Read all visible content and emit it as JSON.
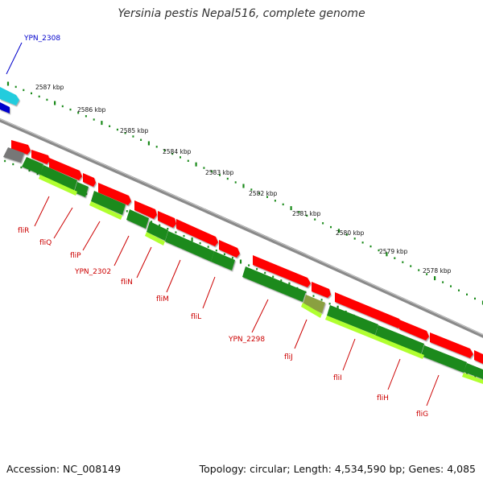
{
  "map": {
    "title": "Yersinia pestis Nepal516, complete genome",
    "accession_label": "Accession: NC_008149",
    "summary_label": "Topology: circular; Length: 4,534,590 bp; Genes: 4,085",
    "colors": {
      "forward_cds": "#ff0000",
      "reverse_cds": "#1e8a1e",
      "rna_gene": "#b0ff30",
      "backbone": "#8a8a8a",
      "tick": "#1a8a1a",
      "forward_label": "#cc0000",
      "reverse_label": "#0000cc",
      "other_feature": "#777777",
      "cyan_feature": "#22ccdd",
      "blue_feature": "#0000cc"
    },
    "tick_labels": [
      "2587 kbp",
      "2586 kbp",
      "2585 kbp",
      "2584 kbp",
      "2583 kbp",
      "2582 kbp",
      "2581 kbp",
      "2580 kbp",
      "2579 kbp",
      "2578 kbp"
    ],
    "gene_labels": [
      {
        "name": "YPN_2308",
        "strand": "forward"
      },
      {
        "name": "fliR",
        "strand": "reverse"
      },
      {
        "name": "fliQ",
        "strand": "reverse"
      },
      {
        "name": "fliP",
        "strand": "reverse"
      },
      {
        "name": "YPN_2302",
        "strand": "reverse"
      },
      {
        "name": "fliN",
        "strand": "reverse"
      },
      {
        "name": "fliM",
        "strand": "reverse"
      },
      {
        "name": "fliL",
        "strand": "reverse"
      },
      {
        "name": "YPN_2298",
        "strand": "reverse"
      },
      {
        "name": "fliJ",
        "strand": "reverse"
      },
      {
        "name": "fliI",
        "strand": "reverse"
      },
      {
        "name": "fliH",
        "strand": "reverse"
      },
      {
        "name": "fliG",
        "strand": "reverse"
      }
    ]
  }
}
